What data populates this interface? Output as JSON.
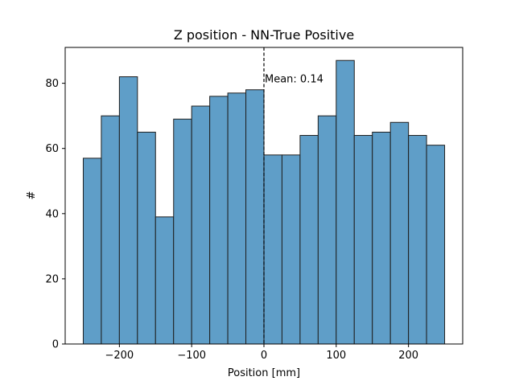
{
  "chart_data": {
    "type": "bar",
    "title": "Z position - NN-True Positive",
    "xlabel": "Position [mm]",
    "ylabel": "#",
    "xlim": [
      -275,
      275
    ],
    "ylim": [
      0,
      91
    ],
    "xticks": [
      -200,
      -100,
      0,
      100,
      200
    ],
    "xtick_labels": [
      "−200",
      "−100",
      "0",
      "100",
      "200"
    ],
    "yticks": [
      0,
      20,
      40,
      60,
      80
    ],
    "yticks_labels": [
      "0",
      "20",
      "40",
      "60",
      "80"
    ],
    "bin_edges": [
      -250,
      -225,
      -200,
      -175,
      -150,
      -125,
      -100,
      -75,
      -50,
      -25,
      0,
      25,
      50,
      75,
      100,
      125,
      150,
      175,
      200,
      225,
      250
    ],
    "values": [
      57,
      70,
      82,
      65,
      39,
      69,
      73,
      76,
      77,
      78,
      58,
      58,
      64,
      70,
      87,
      64,
      65,
      68,
      64,
      61
    ],
    "bar_color": "#5f9ec8",
    "bar_edge_color": "#1f1f1f",
    "mean_line_x": 0,
    "mean_label": "Mean: 0.14",
    "grid": false
  }
}
